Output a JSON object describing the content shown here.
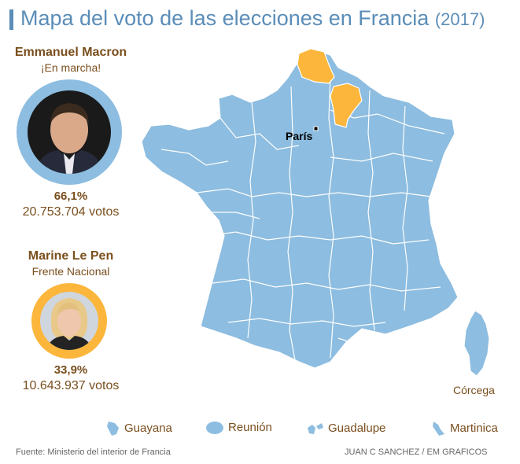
{
  "title": {
    "main": "Mapa del voto de las elecciones en Francia",
    "year": "(2017)"
  },
  "candidates": [
    {
      "name": "Emmanuel Macron",
      "party": "¡En marcha!",
      "percent": "66,1%",
      "votes": "20.753.704 votos",
      "color": "#8dbde0"
    },
    {
      "name": "Marine Le Pen",
      "party": "Frente Nacional",
      "percent": "33,9%",
      "votes": "10.643.937 votos",
      "color": "#fbb63b"
    }
  ],
  "map": {
    "region_color_macron": "#8dbde0",
    "region_color_lepen": "#fbb63b",
    "border_color": "#ffffff",
    "labels": {
      "capital": "París",
      "island": "Córcega"
    }
  },
  "overseas": [
    {
      "name": "Guayana",
      "icon": "guayana-icon"
    },
    {
      "name": "Reunión",
      "icon": "reunion-icon"
    },
    {
      "name": "Guadalupe",
      "icon": "guadalupe-icon"
    },
    {
      "name": "Martinica",
      "icon": "martinica-icon"
    }
  ],
  "footer": {
    "source": "Fuente: Ministerio del interior de Francia",
    "credit": "JUAN C SANCHEZ / EM GRAFICOS"
  }
}
